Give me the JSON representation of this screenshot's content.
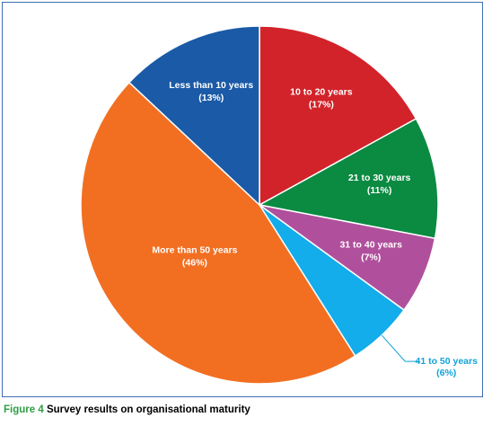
{
  "chart_data": {
    "type": "pie",
    "slices": [
      {
        "label": "Less than 10 years",
        "pct_label": "(13%)",
        "value": 13,
        "color": "#1a5aa6"
      },
      {
        "label": "10 to 20 years",
        "pct_label": "(17%)",
        "value": 17,
        "color": "#d2232a"
      },
      {
        "label": "21 to 30 years",
        "pct_label": "(11%)",
        "value": 11,
        "color": "#0b8a42"
      },
      {
        "label": "31 to 40 years",
        "pct_label": "(7%)",
        "value": 7,
        "color": "#b0509c"
      },
      {
        "label": "41 to 50 years",
        "pct_label": "(6%)",
        "value": 6,
        "color": "#12adea"
      },
      {
        "label": "More than 50 years",
        "pct_label": "(46%)",
        "value": 46,
        "color": "#f26f22"
      }
    ]
  },
  "caption": {
    "figure_number": "Figure 4",
    "text": "Survey results on organisational maturity"
  }
}
